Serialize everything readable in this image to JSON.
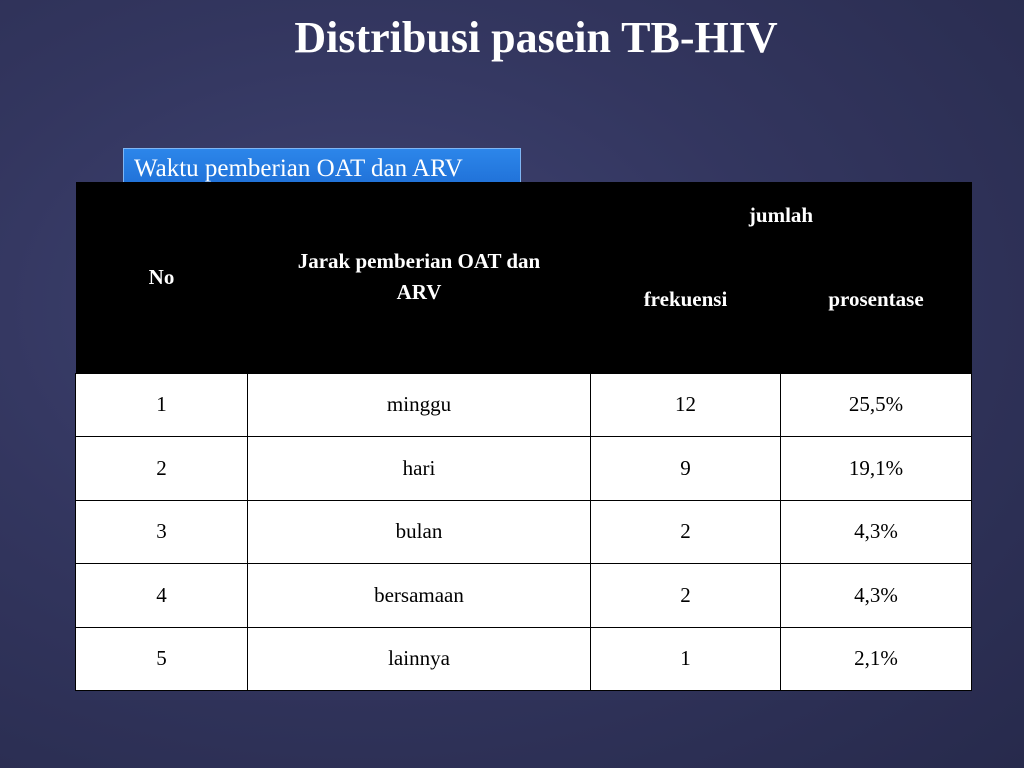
{
  "slide": {
    "title": "Distribusi pasein TB-HIV",
    "caption": "Waktu pemberian OAT dan ARV"
  },
  "table": {
    "headers": {
      "no": "No",
      "jarak": "Jarak pemberian OAT dan ARV",
      "jumlah": "jumlah",
      "frekuensi": "frekuensi",
      "prosentase": "prosentase"
    },
    "rows": [
      {
        "no": "1",
        "jarak": "minggu",
        "frekuensi": "12",
        "prosentase": "25,5%"
      },
      {
        "no": "2",
        "jarak": "hari",
        "frekuensi": "9",
        "prosentase": "19,1%"
      },
      {
        "no": "3",
        "jarak": "bulan",
        "frekuensi": "2",
        "prosentase": "4,3%"
      },
      {
        "no": "4",
        "jarak": "bersamaan",
        "frekuensi": "2",
        "prosentase": "4,3%"
      },
      {
        "no": "5",
        "jarak": "lainnya",
        "frekuensi": "1",
        "prosentase": "2,1%"
      }
    ]
  },
  "colors": {
    "background": "#33365f",
    "caption_box": "#2c86ea",
    "table_header": "#000000",
    "table_body": "#ffffff"
  }
}
